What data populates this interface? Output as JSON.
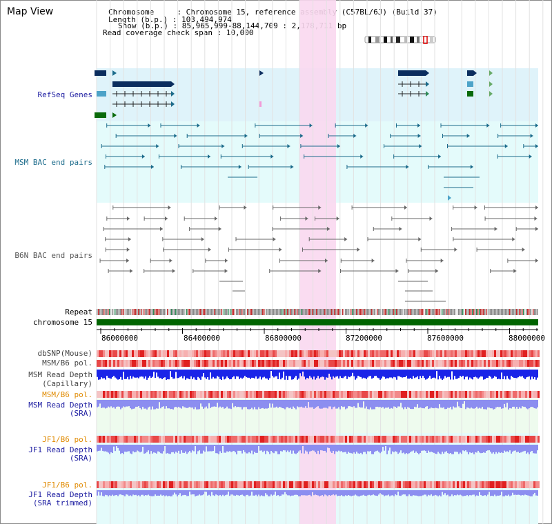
{
  "header": {
    "title": "Map View",
    "info_lines": [
      "Chromosome     : Chromosome 15, reference assembly (C57BL/6J) (Build 37)",
      "Length (b.p.) : 103,494,974",
      "Show (b.p.) : 85,965,999-88,144,709 : 2,178,711 bp",
      "Read coverage check span : 10,000"
    ]
  },
  "tracks": {
    "refseq": "RefSeq Genes",
    "msm_bac": "MSM BAC end pairs",
    "b6n_bac": "B6N BAC end pairs",
    "repeat": "Repeat",
    "chromosome": "chromosome 15",
    "dbsnp": "dbSNP(Mouse)",
    "msm_b6_pol": "MSM/B6 pol.",
    "msm_depth_cap_1": "MSM Read Depth",
    "msm_depth_cap_2": "(Capillary)",
    "msm_b6_pol_2": "MSM/B6 pol.",
    "msm_depth_sra_1": "MSM Read Depth",
    "msm_depth_sra_2": "(SRA)",
    "jf1_b6_pol": "JF1/B6 pol.",
    "jf1_depth_sra_1": "JF1 Read Depth",
    "jf1_depth_sra_2": "(SRA)",
    "jf1_b6_pol_2": "JF1/B6 pol.",
    "jf1_depth_trim_1": "JF1 Read Depth",
    "jf1_depth_trim_2": "(SRA trimmed)"
  },
  "axis": {
    "ticks": [
      "86000000",
      "86400000",
      "86800000",
      "87200000",
      "87600000",
      "88000000"
    ]
  },
  "colors": {
    "refseq_text": "#1a1aa0",
    "msm_text": "#1a6a8a",
    "b6n_text": "#555555",
    "sra_text": "#1a1aa0",
    "jf1_pol_text": "#e08a00",
    "msm_pol2_text": "#e08a00",
    "highlight": "#f9d8f0",
    "chromosome": "#006400"
  }
}
